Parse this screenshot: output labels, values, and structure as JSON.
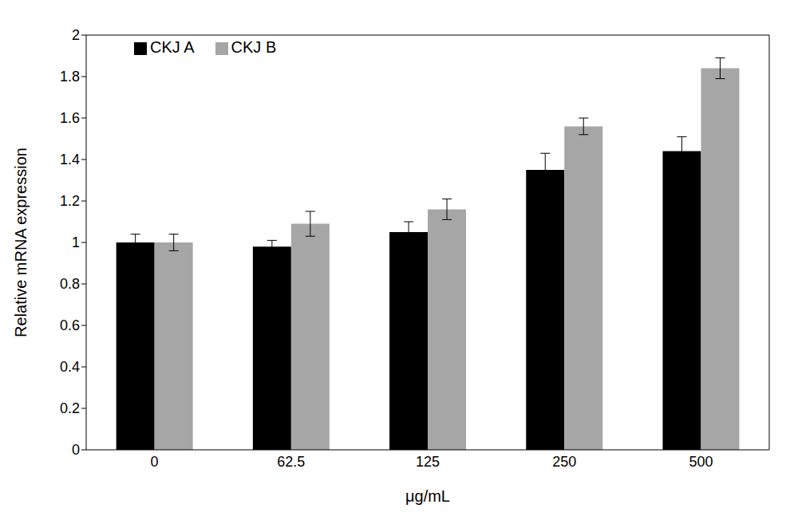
{
  "chart_data": {
    "type": "bar",
    "categories": [
      "0",
      "62.5",
      "125",
      "250",
      "500"
    ],
    "series": [
      {
        "name": "CKJ A",
        "color": "#000000",
        "values": [
          1.0,
          0.98,
          1.05,
          1.35,
          1.44
        ],
        "errors": [
          0.04,
          0.03,
          0.05,
          0.08,
          0.07
        ]
      },
      {
        "name": "CKJ B",
        "color": "#a6a6a6",
        "values": [
          1.0,
          1.09,
          1.16,
          1.56,
          1.84
        ],
        "errors": [
          0.04,
          0.06,
          0.05,
          0.04,
          0.05
        ]
      }
    ],
    "x_label": "μg/mL",
    "y_label": "Relative mRNA expression",
    "ylim": [
      0,
      2
    ],
    "yticks": [
      0,
      0.2,
      0.4,
      0.6,
      0.8,
      1,
      1.2,
      1.4,
      1.6,
      1.8,
      2
    ],
    "grid": false,
    "legend": "upper left"
  }
}
